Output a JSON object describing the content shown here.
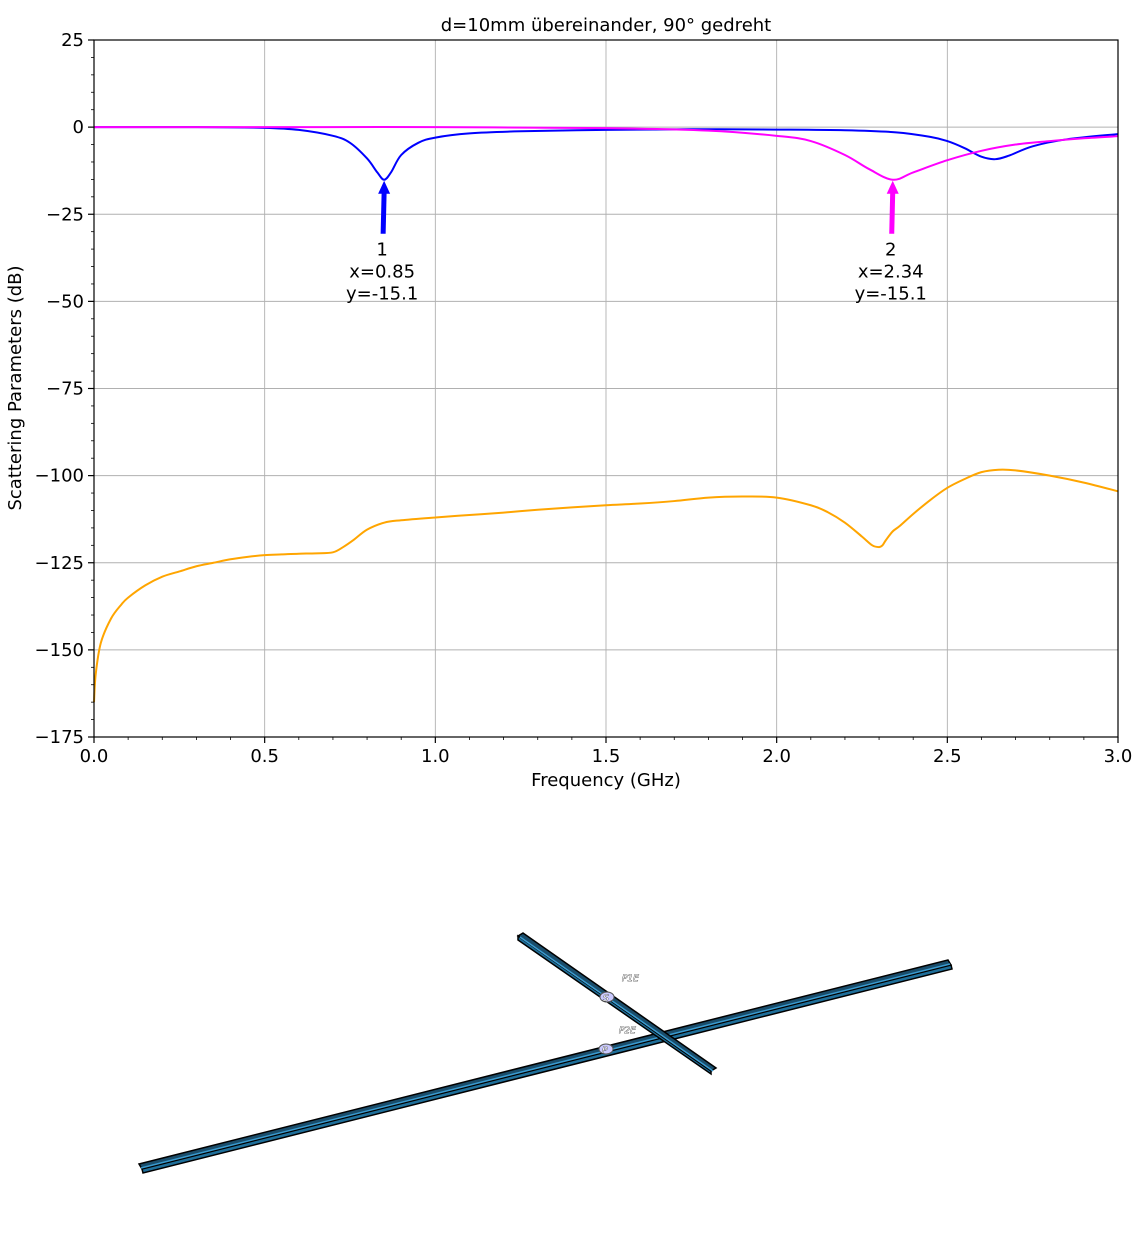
{
  "chart_data": {
    "type": "line",
    "title": "d=10mm übereinander, 90° gedreht",
    "xlabel": "Frequency (GHz)",
    "ylabel": "Scattering Parameters (dB)",
    "xlim": [
      0,
      3.0
    ],
    "ylim": [
      -175,
      25
    ],
    "xticks": [
      0.0,
      0.5,
      1.0,
      1.5,
      2.0,
      2.5,
      3.0
    ],
    "xtick_labels": [
      "0.0",
      "0.5",
      "1.0",
      "1.5",
      "2.0",
      "2.5",
      "3.0"
    ],
    "yticks": [
      25,
      0,
      -25,
      -50,
      -75,
      -100,
      -125,
      -150,
      -175
    ],
    "ytick_labels": [
      "25",
      "0",
      "−25",
      "−50",
      "−75",
      "−100",
      "−125",
      "−150",
      "−175"
    ],
    "grid": true,
    "series": [
      {
        "color": "#0000ff",
        "x": [
          0,
          0.3,
          0.5,
          0.6,
          0.7,
          0.75,
          0.8,
          0.83,
          0.85,
          0.87,
          0.9,
          0.95,
          1.0,
          1.1,
          1.25,
          1.5,
          1.75,
          2.0,
          2.2,
          2.35,
          2.45,
          2.5,
          2.55,
          2.6,
          2.64,
          2.68,
          2.75,
          2.85,
          3.0
        ],
        "y": [
          0,
          0,
          -0.2,
          -0.8,
          -2.5,
          -4.5,
          -9,
          -13,
          -15.1,
          -13,
          -8,
          -4.5,
          -3,
          -1.8,
          -1.2,
          -0.8,
          -0.6,
          -0.7,
          -0.9,
          -1.5,
          -2.8,
          -4,
          -6,
          -8.5,
          -9.2,
          -8.2,
          -5.5,
          -3.5,
          -2
        ]
      },
      {
        "color": "#ff00ff",
        "x": [
          0,
          0.5,
          1.0,
          1.5,
          1.8,
          2.0,
          2.1,
          2.2,
          2.27,
          2.34,
          2.4,
          2.5,
          2.6,
          2.7,
          2.8,
          2.9,
          3.0
        ],
        "y": [
          0,
          0,
          0,
          -0.3,
          -1,
          -2.5,
          -4,
          -8,
          -12,
          -15.1,
          -13,
          -9.5,
          -6.8,
          -5,
          -4,
          -3.2,
          -2.6
        ]
      },
      {
        "color": "#ffa500",
        "x": [
          0.0,
          0.005,
          0.02,
          0.05,
          0.08,
          0.1,
          0.15,
          0.2,
          0.25,
          0.3,
          0.35,
          0.4,
          0.45,
          0.5,
          0.55,
          0.6,
          0.65,
          0.7,
          0.73,
          0.76,
          0.8,
          0.85,
          0.9,
          1.0,
          1.1,
          1.2,
          1.3,
          1.4,
          1.5,
          1.6,
          1.7,
          1.8,
          1.9,
          2.0,
          2.1,
          2.15,
          2.2,
          2.25,
          2.28,
          2.3,
          2.31,
          2.32,
          2.34,
          2.36,
          2.4,
          2.45,
          2.5,
          2.55,
          2.6,
          2.65,
          2.7,
          2.8,
          2.9,
          3.0
        ],
        "y": [
          -165,
          -157,
          -148,
          -141,
          -137,
          -135,
          -131.5,
          -129,
          -127.5,
          -126,
          -125,
          -124,
          -123.3,
          -122.8,
          -122.6,
          -122.4,
          -122.3,
          -122,
          -120.5,
          -118.5,
          -115.5,
          -113.5,
          -112.8,
          -112,
          -111.3,
          -110.6,
          -109.8,
          -109.1,
          -108.5,
          -108,
          -107.3,
          -106.3,
          -106,
          -106.3,
          -108.5,
          -110.5,
          -113.5,
          -117.5,
          -120,
          -120.5,
          -120,
          -118.5,
          -116,
          -114.5,
          -111,
          -107,
          -103.5,
          -101,
          -99,
          -98.3,
          -98.5,
          -100,
          -102,
          -104.5
        ]
      }
    ],
    "annotations": [
      {
        "x": 0.85,
        "y": -15.1,
        "color": "#0000ff",
        "lines": [
          "1",
          "x=0.85",
          "y=-15.1"
        ]
      },
      {
        "x": 2.34,
        "y": -15.1,
        "color": "#ff00ff",
        "lines": [
          "2",
          "x=2.34",
          "y=-15.1"
        ]
      }
    ]
  },
  "model_view": {
    "port_labels": [
      "P1E",
      "P2E"
    ],
    "port_numbers": [
      "S",
      "P"
    ],
    "bar_color": "#1f6f9a"
  }
}
